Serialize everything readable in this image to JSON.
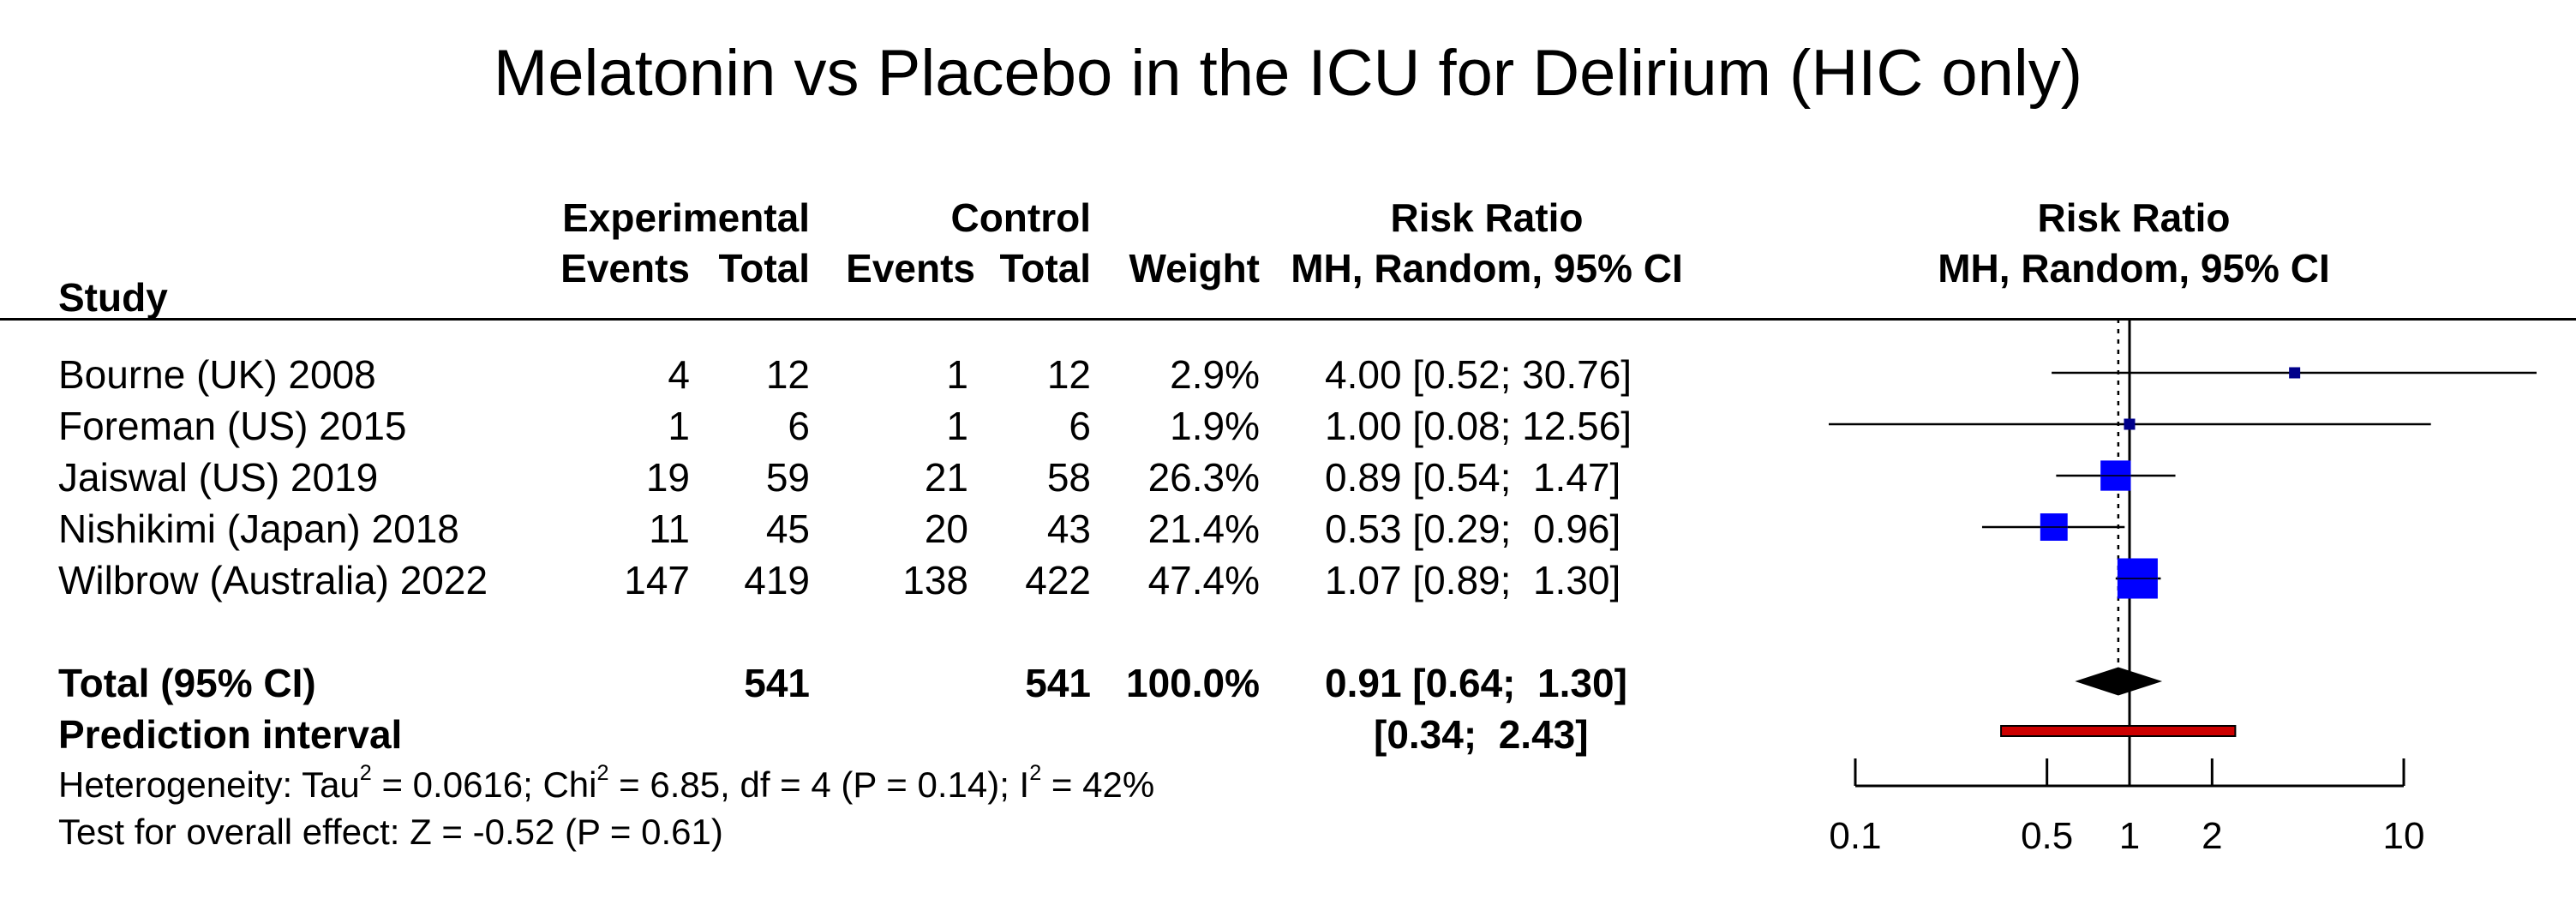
{
  "title": "Melatonin vs Placebo in the ICU for Delirium (HIC only)",
  "headers": {
    "study": "Study",
    "experimental": "Experimental",
    "control": "Control",
    "events": "Events",
    "total": "Total",
    "weight": "Weight",
    "rr_line1": "Risk Ratio",
    "rr_line2": "MH, Random, 95% CI",
    "plot_line1": "Risk Ratio",
    "plot_line2": "MH, Random, 95% CI"
  },
  "studies": [
    {
      "name": "Bourne (UK) 2008",
      "exp_events": "4",
      "exp_total": "12",
      "ctl_events": "1",
      "ctl_total": "12",
      "weight": "2.9%",
      "ci_text": "4.00 [0.52; 30.76]"
    },
    {
      "name": "Foreman (US) 2015",
      "exp_events": "1",
      "exp_total": "6",
      "ctl_events": "1",
      "ctl_total": "6",
      "weight": "1.9%",
      "ci_text": "1.00 [0.08; 12.56]"
    },
    {
      "name": "Jaiswal (US) 2019",
      "exp_events": "19",
      "exp_total": "59",
      "ctl_events": "21",
      "ctl_total": "58",
      "weight": "26.3%",
      "ci_text": "0.89 [0.54;  1.47]"
    },
    {
      "name": "Nishikimi (Japan) 2018",
      "exp_events": "11",
      "exp_total": "45",
      "ctl_events": "20",
      "ctl_total": "43",
      "weight": "21.4%",
      "ci_text": "0.53 [0.29;  0.96]"
    },
    {
      "name": "Wilbrow (Australia) 2022",
      "exp_events": "147",
      "exp_total": "419",
      "ctl_events": "138",
      "ctl_total": "422",
      "weight": "47.4%",
      "ci_text": "1.07 [0.89;  1.30]"
    }
  ],
  "total_row": {
    "label": "Total (95% CI)",
    "exp_total": "541",
    "ctl_total": "541",
    "weight": "100.0%",
    "ci_text": "0.91 [0.64;  1.30]"
  },
  "prediction_row": {
    "label": "Prediction interval",
    "ci_text": "[0.34;  2.43]"
  },
  "footnotes": {
    "het_a": "Heterogeneity: Tau",
    "het_sup1": "2",
    "het_b": " = 0.0616; Chi",
    "het_sup2": "2",
    "het_c": " = 6.85, df = 4 (P = 0.14); I",
    "het_sup3": "2",
    "het_d": " = 42%",
    "overall": "Test for overall effect: Z = -0.52 (P = 0.61)"
  },
  "colors": {
    "study_box": "#0000ff",
    "small_box": "#00008b",
    "summary_diamond": "#000000",
    "prediction_bar": "#cc0000"
  },
  "chart_data": {
    "type": "forest",
    "scale": "log",
    "axis_ticks": [
      0.1,
      0.5,
      1,
      2,
      10
    ],
    "axis_tick_labels": [
      "0.1",
      "0.5",
      "1",
      "2",
      "10"
    ],
    "reference_line": 1,
    "summary_line": 0.91,
    "studies": [
      {
        "name": "Bourne (UK) 2008",
        "rr": 4.0,
        "lower": 0.52,
        "upper": 30.76,
        "weight": 2.9
      },
      {
        "name": "Foreman (US) 2015",
        "rr": 1.0,
        "lower": 0.08,
        "upper": 12.56,
        "weight": 1.9
      },
      {
        "name": "Jaiswal (US) 2019",
        "rr": 0.89,
        "lower": 0.54,
        "upper": 1.47,
        "weight": 26.3
      },
      {
        "name": "Nishikimi (Japan) 2018",
        "rr": 0.53,
        "lower": 0.29,
        "upper": 0.96,
        "weight": 21.4
      },
      {
        "name": "Wilbrow (Australia) 2022",
        "rr": 1.07,
        "lower": 0.89,
        "upper": 1.3,
        "weight": 47.4
      }
    ],
    "summary": {
      "rr": 0.91,
      "lower": 0.64,
      "upper": 1.3
    },
    "prediction_interval": {
      "lower": 0.34,
      "upper": 2.43
    }
  }
}
